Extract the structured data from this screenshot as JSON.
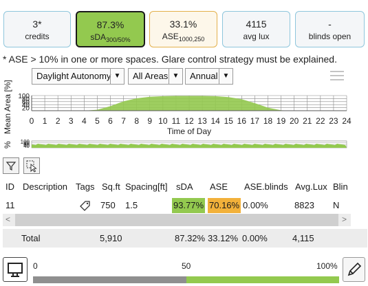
{
  "cards": [
    {
      "value": "3*",
      "label": "credits",
      "sub": ""
    },
    {
      "value": "87.3%",
      "label": "sDA",
      "sub": "300/50%"
    },
    {
      "value": "33.1%",
      "label": "ASE",
      "sub": "1000,250"
    },
    {
      "value": "4115",
      "label": "avg lux",
      "sub": ""
    },
    {
      "value": "-",
      "label": "blinds open",
      "sub": ""
    }
  ],
  "note": "* ASE > 10% in one or more spaces. Glare control strategy must be explained.",
  "toolbar": {
    "metric": "Daylight Autonomy",
    "area": "All Areas",
    "period": "Annual"
  },
  "chart_data": {
    "type": "area",
    "xlabel": "Time of Day",
    "ylabel": "Mean Area [%]",
    "x": [
      0,
      1,
      2,
      3,
      4,
      5,
      6,
      7,
      8,
      9,
      10,
      11,
      12,
      13,
      14,
      15,
      16,
      17,
      18,
      19,
      20,
      21,
      22,
      23,
      24
    ],
    "y": [
      0,
      0,
      0,
      0,
      0,
      6,
      30,
      62,
      82,
      92,
      96,
      98,
      98,
      98,
      96,
      90,
      76,
      50,
      20,
      3,
      0,
      0,
      0,
      0,
      0
    ],
    "ytick_labels": [
      "100",
      "80",
      "60",
      "40",
      "20"
    ],
    "xlim": [
      0,
      24
    ],
    "ylim": [
      0,
      100
    ],
    "color": "#93c94f",
    "grid": true
  },
  "chart2_ylabel": "%",
  "chart2_ytick_labels": [
    "100",
    "80",
    "60",
    "40"
  ],
  "table": {
    "headers": [
      "ID",
      "Description",
      "Tags",
      "Sq.ft",
      "Spacing[ft]",
      "sDA",
      "ASE",
      "ASE.blinds",
      "Avg.Lux",
      "Blin"
    ],
    "rows": [
      {
        "id": "11",
        "description": "",
        "sqft": "750",
        "spacing": "1.5",
        "sda": "93.77%",
        "ase": "70.16%",
        "ase_blinds": "0.00%",
        "avg_lux": "8823",
        "blinds": "N"
      }
    ],
    "total": {
      "label": "Total",
      "sqft": "5,910",
      "sda": "87.32%",
      "ase": "33.12%",
      "ase_blinds": "0.00%",
      "avg_lux": "4,115"
    },
    "scroll_left": "<",
    "scroll_right": ">"
  },
  "slider": {
    "min_label": "0",
    "mid_label": "50",
    "max_label": "100%",
    "value": 50
  }
}
